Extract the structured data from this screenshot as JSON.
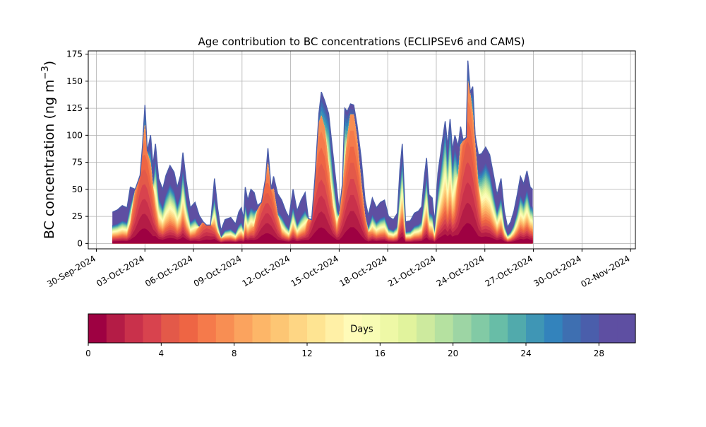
{
  "chart_data": {
    "type": "area",
    "title": "Age contribution to BC concentrations (ECLIPSEv6 and CAMS)",
    "ylabel": "BC concentration (ng m",
    "ylabel_sup": "−3",
    "ylabel_close": ")",
    "xlabel": "",
    "grid": true,
    "ylim": [
      -5,
      178
    ],
    "yticks": [
      0,
      25,
      50,
      75,
      100,
      125,
      150,
      175
    ],
    "xlim_days": [
      -0.5,
      33.3
    ],
    "xticks": [
      {
        "label": "30-Sep-2024",
        "day": 0
      },
      {
        "label": "03-Oct-2024",
        "day": 3
      },
      {
        "label": "06-Oct-2024",
        "day": 6
      },
      {
        "label": "09-Oct-2024",
        "day": 9
      },
      {
        "label": "12-Oct-2024",
        "day": 12
      },
      {
        "label": "15-Oct-2024",
        "day": 15
      },
      {
        "label": "18-Oct-2024",
        "day": 18
      },
      {
        "label": "21-Oct-2024",
        "day": 21
      },
      {
        "label": "24-Oct-2024",
        "day": 24
      },
      {
        "label": "27-Oct-2024",
        "day": 27
      },
      {
        "label": "30-Oct-2024",
        "day": 30
      },
      {
        "label": "02-Nov-2024",
        "day": 33
      }
    ],
    "series_note": "Stacked by age class: days 0–30",
    "total": [
      [
        1.0,
        29
      ],
      [
        1.3,
        31
      ],
      [
        1.6,
        35
      ],
      [
        1.9,
        33
      ],
      [
        2.1,
        52
      ],
      [
        2.4,
        50
      ],
      [
        2.7,
        63
      ],
      [
        2.85,
        90
      ],
      [
        3.0,
        128
      ],
      [
        3.15,
        85
      ],
      [
        3.35,
        100
      ],
      [
        3.5,
        72
      ],
      [
        3.65,
        92
      ],
      [
        3.85,
        60
      ],
      [
        4.1,
        50
      ],
      [
        4.3,
        63
      ],
      [
        4.55,
        72
      ],
      [
        4.8,
        66
      ],
      [
        5.0,
        52
      ],
      [
        5.2,
        63
      ],
      [
        5.35,
        84
      ],
      [
        5.55,
        58
      ],
      [
        5.8,
        33
      ],
      [
        6.1,
        38
      ],
      [
        6.35,
        26
      ],
      [
        6.6,
        20
      ],
      [
        6.8,
        17
      ],
      [
        7.05,
        17
      ],
      [
        7.3,
        60
      ],
      [
        7.5,
        32
      ],
      [
        7.7,
        12
      ],
      [
        7.95,
        22
      ],
      [
        8.3,
        24
      ],
      [
        8.6,
        18
      ],
      [
        8.8,
        29
      ],
      [
        8.95,
        33
      ],
      [
        9.1,
        23
      ],
      [
        9.2,
        52
      ],
      [
        9.35,
        40
      ],
      [
        9.55,
        50
      ],
      [
        9.75,
        47
      ],
      [
        9.95,
        35
      ],
      [
        10.2,
        38
      ],
      [
        10.45,
        60
      ],
      [
        10.6,
        88
      ],
      [
        10.8,
        50
      ],
      [
        10.95,
        62
      ],
      [
        11.2,
        46
      ],
      [
        11.45,
        40
      ],
      [
        11.7,
        30
      ],
      [
        11.9,
        24
      ],
      [
        12.15,
        50
      ],
      [
        12.4,
        30
      ],
      [
        12.65,
        40
      ],
      [
        12.9,
        47
      ],
      [
        13.1,
        23
      ],
      [
        13.3,
        22
      ],
      [
        13.5,
        60
      ],
      [
        13.75,
        120
      ],
      [
        13.9,
        140
      ],
      [
        14.1,
        132
      ],
      [
        14.35,
        120
      ],
      [
        14.6,
        85
      ],
      [
        14.85,
        50
      ],
      [
        15.0,
        30
      ],
      [
        15.2,
        55
      ],
      [
        15.35,
        125
      ],
      [
        15.5,
        122
      ],
      [
        15.7,
        129
      ],
      [
        15.9,
        128
      ],
      [
        16.1,
        110
      ],
      [
        16.35,
        80
      ],
      [
        16.6,
        40
      ],
      [
        16.8,
        26
      ],
      [
        17.05,
        42
      ],
      [
        17.3,
        33
      ],
      [
        17.55,
        38
      ],
      [
        17.8,
        40
      ],
      [
        18.05,
        25
      ],
      [
        18.35,
        22
      ],
      [
        18.6,
        28
      ],
      [
        18.75,
        68
      ],
      [
        18.9,
        92
      ],
      [
        19.1,
        20
      ],
      [
        19.4,
        21
      ],
      [
        19.65,
        28
      ],
      [
        19.9,
        30
      ],
      [
        20.1,
        34
      ],
      [
        20.25,
        60
      ],
      [
        20.4,
        79
      ],
      [
        20.55,
        45
      ],
      [
        20.75,
        42
      ],
      [
        20.9,
        20
      ],
      [
        21.1,
        65
      ],
      [
        21.35,
        92
      ],
      [
        21.55,
        113
      ],
      [
        21.7,
        90
      ],
      [
        21.85,
        115
      ],
      [
        22.0,
        86
      ],
      [
        22.15,
        100
      ],
      [
        22.35,
        90
      ],
      [
        22.5,
        108
      ],
      [
        22.65,
        96
      ],
      [
        22.85,
        98
      ],
      [
        22.95,
        169
      ],
      [
        23.1,
        140
      ],
      [
        23.25,
        145
      ],
      [
        23.4,
        100
      ],
      [
        23.6,
        82
      ],
      [
        23.8,
        83
      ],
      [
        24.05,
        89
      ],
      [
        24.3,
        82
      ],
      [
        24.55,
        62
      ],
      [
        24.75,
        45
      ],
      [
        25.0,
        60
      ],
      [
        25.2,
        30
      ],
      [
        25.4,
        15
      ],
      [
        25.6,
        20
      ],
      [
        25.8,
        30
      ],
      [
        26.0,
        45
      ],
      [
        26.2,
        62
      ],
      [
        26.4,
        55
      ],
      [
        26.6,
        67
      ],
      [
        26.8,
        52
      ],
      [
        26.95,
        50
      ]
    ],
    "inner_peaks": [
      [
        2.95,
        110
      ],
      [
        6.85,
        28
      ],
      [
        10.55,
        75
      ],
      [
        13.9,
        118
      ],
      [
        15.8,
        122
      ],
      [
        22.95,
        150
      ]
    ],
    "colorbar": {
      "label": "Days",
      "min": 0,
      "max": 30,
      "ticks": [
        0,
        4,
        8,
        12,
        16,
        20,
        24,
        28
      ],
      "colors": [
        "#9e0142",
        "#b41c46",
        "#c9314b",
        "#d8434e",
        "#e35949",
        "#ee6544",
        "#f57a4b",
        "#f88e53",
        "#fba35e",
        "#fdb668",
        "#fdc674",
        "#fed684",
        "#fee492",
        "#fff0a6",
        "#fffbb8",
        "#f8fcb4",
        "#eef8a6",
        "#e1f39d",
        "#cdea9e",
        "#b5e1a0",
        "#9dd5a4",
        "#82caa5",
        "#68bda7",
        "#51aaac",
        "#3f96b5",
        "#3383bc",
        "#3e6fb1",
        "#4a5eab",
        "#5e4fa2",
        "#5e4fa2"
      ]
    }
  }
}
